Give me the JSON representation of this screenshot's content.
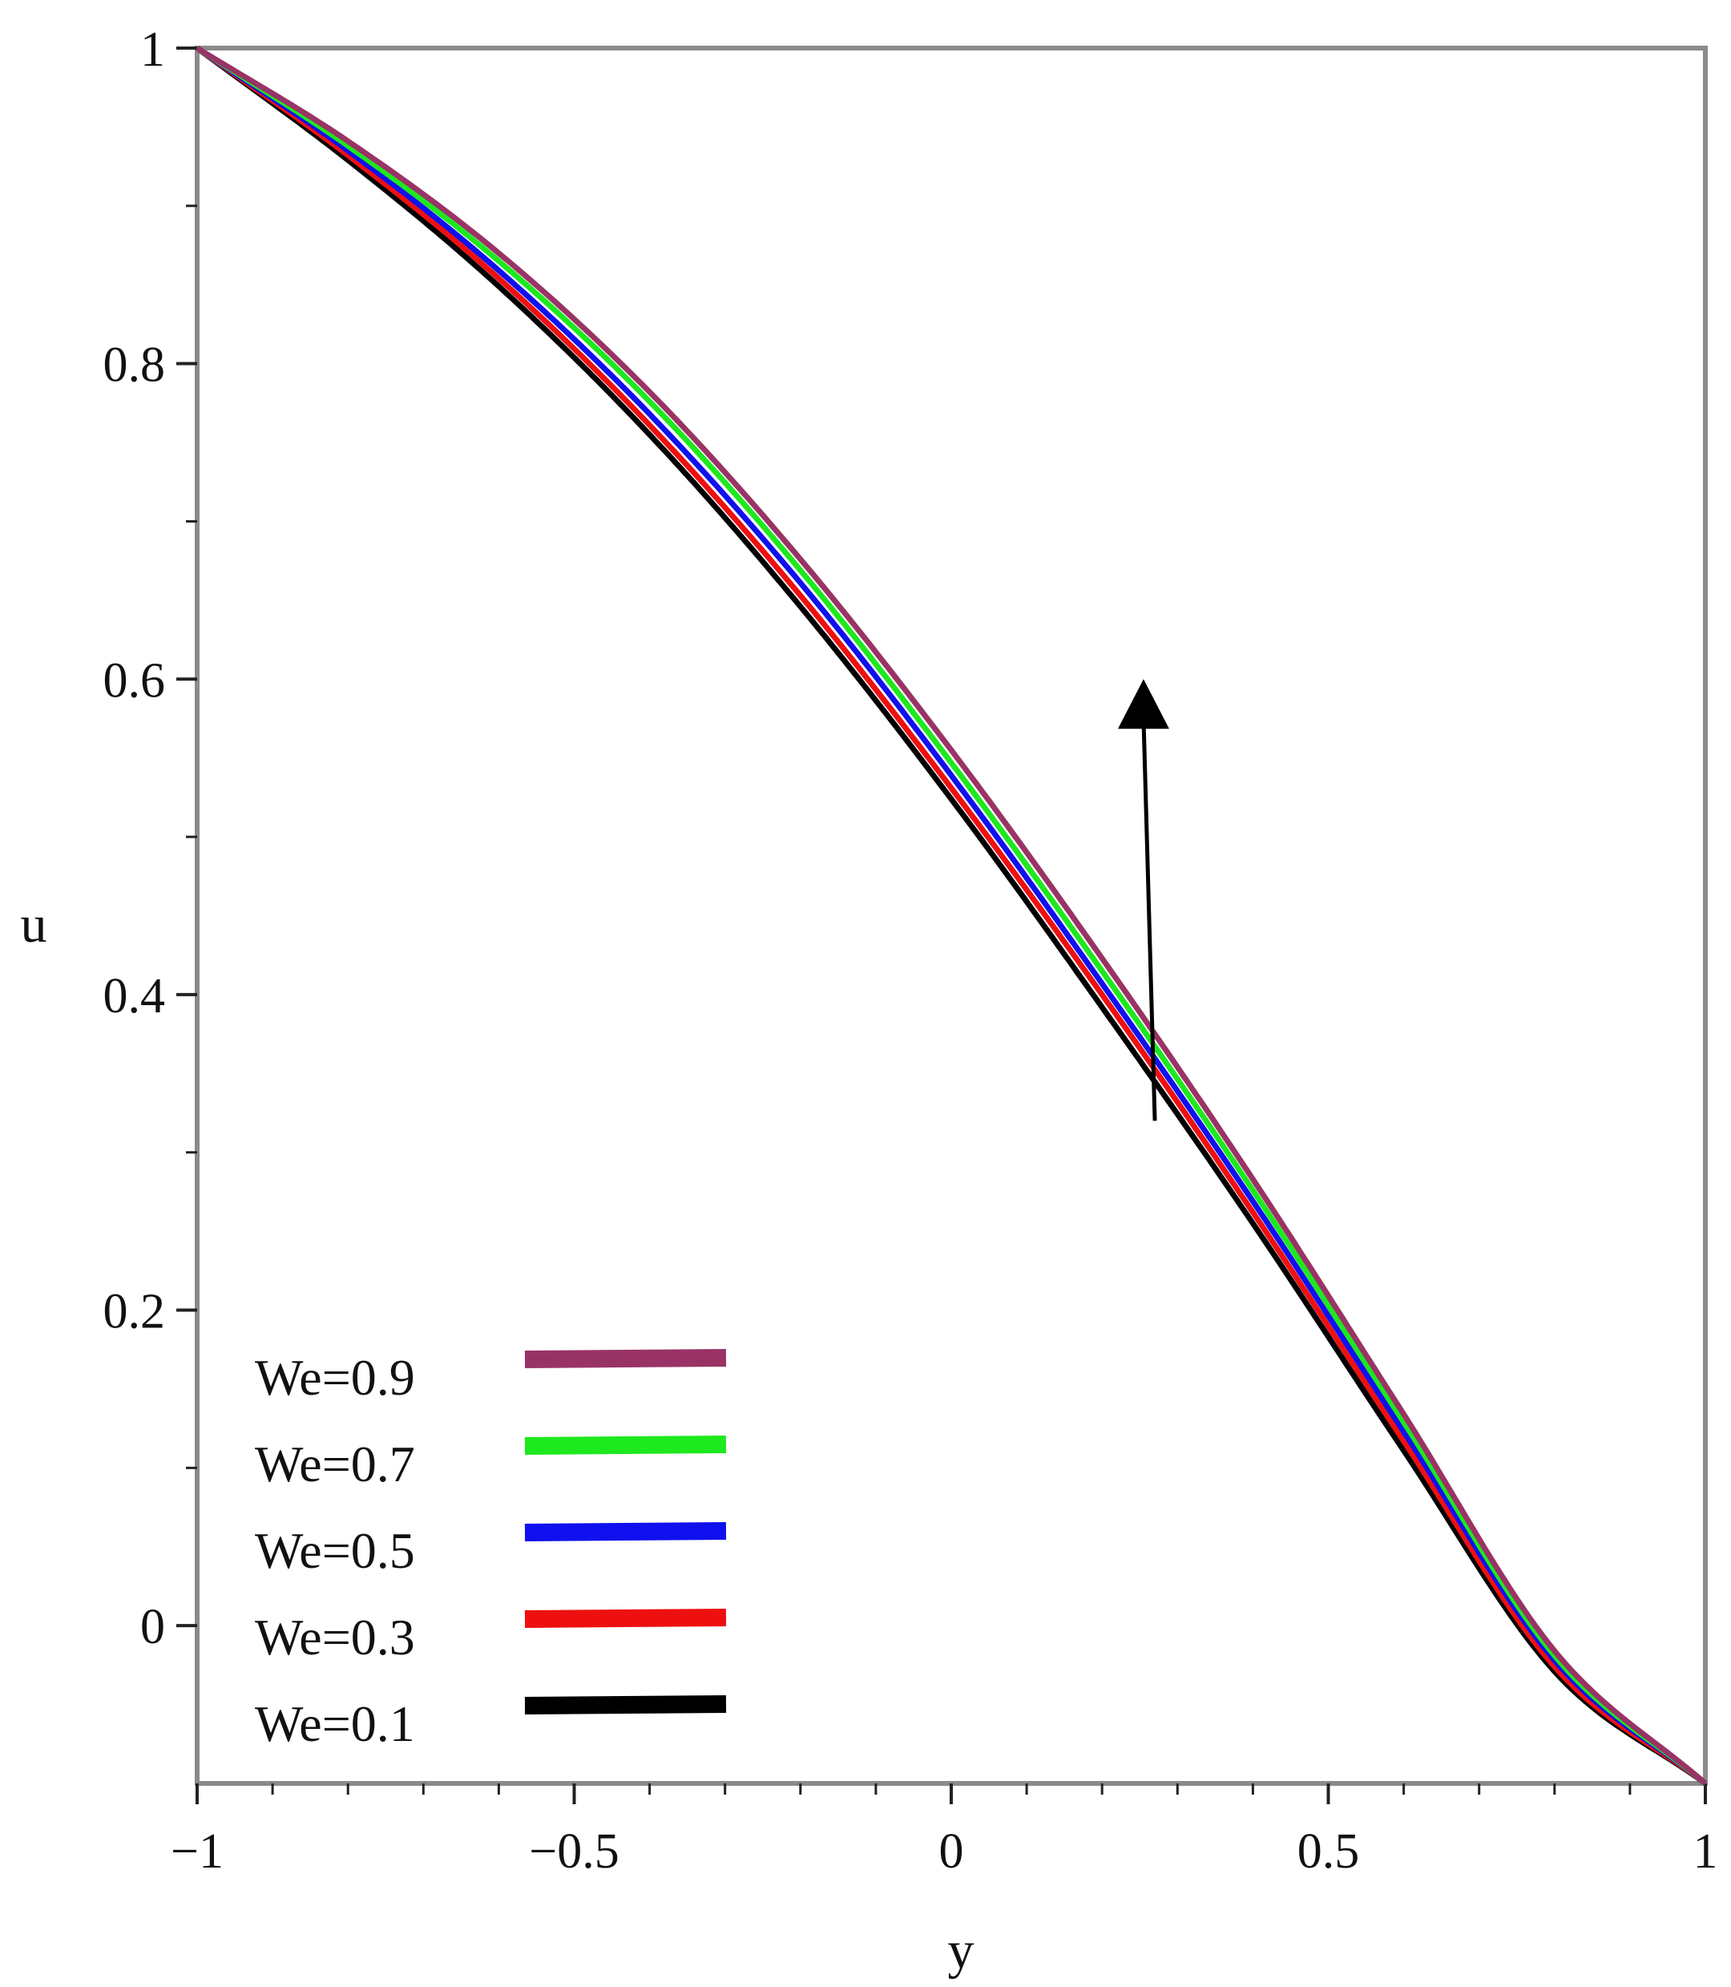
{
  "chart_data": {
    "type": "line",
    "title": "",
    "xlabel": "y",
    "ylabel": "u",
    "xlim": [
      -1,
      1
    ],
    "ylim": [
      -0.1,
      1.0
    ],
    "x_ticks": [
      -1,
      -0.5,
      0,
      0.5,
      1
    ],
    "x_tick_labels": [
      "−1",
      "−0.5",
      "0",
      "0.5",
      "1"
    ],
    "y_ticks": [
      0,
      0.2,
      0.4,
      0.6,
      0.8,
      1
    ],
    "y_tick_labels": [
      "0",
      "0.2",
      "0.4",
      "0.6",
      "0.8",
      "1"
    ],
    "grid": false,
    "legend_position": "bottom-left",
    "x": [
      -1,
      -0.8,
      -0.6,
      -0.4,
      -0.2,
      0,
      0.2,
      0.4,
      0.6,
      0.8,
      1
    ],
    "series": [
      {
        "name": "We=0.9",
        "color": "#993366",
        "values": [
          1.0,
          0.941,
          0.87,
          0.782,
          0.676,
          0.555,
          0.423,
          0.283,
          0.134,
          -0.016,
          -0.1
        ]
      },
      {
        "name": "We=0.7",
        "color": "#1ee81e",
        "values": [
          1.0,
          0.938,
          0.865,
          0.776,
          0.669,
          0.547,
          0.415,
          0.276,
          0.129,
          -0.019,
          -0.1
        ]
      },
      {
        "name": "We=0.5",
        "color": "#1010ee",
        "values": [
          1.0,
          0.935,
          0.859,
          0.768,
          0.661,
          0.539,
          0.407,
          0.269,
          0.123,
          -0.022,
          -0.1
        ]
      },
      {
        "name": "We=0.3",
        "color": "#ee1010",
        "values": [
          1.0,
          0.932,
          0.854,
          0.761,
          0.653,
          0.531,
          0.4,
          0.262,
          0.117,
          -0.026,
          -0.1
        ]
      },
      {
        "name": "We=0.1",
        "color": "#000000",
        "values": [
          1.0,
          0.929,
          0.849,
          0.755,
          0.646,
          0.524,
          0.392,
          0.255,
          0.111,
          -0.029,
          -0.1
        ]
      }
    ],
    "annotations": [
      {
        "type": "arrow",
        "description": "increasing We",
        "from": [
          0.27,
          0.32
        ],
        "to": [
          0.255,
          0.6
        ]
      }
    ]
  }
}
